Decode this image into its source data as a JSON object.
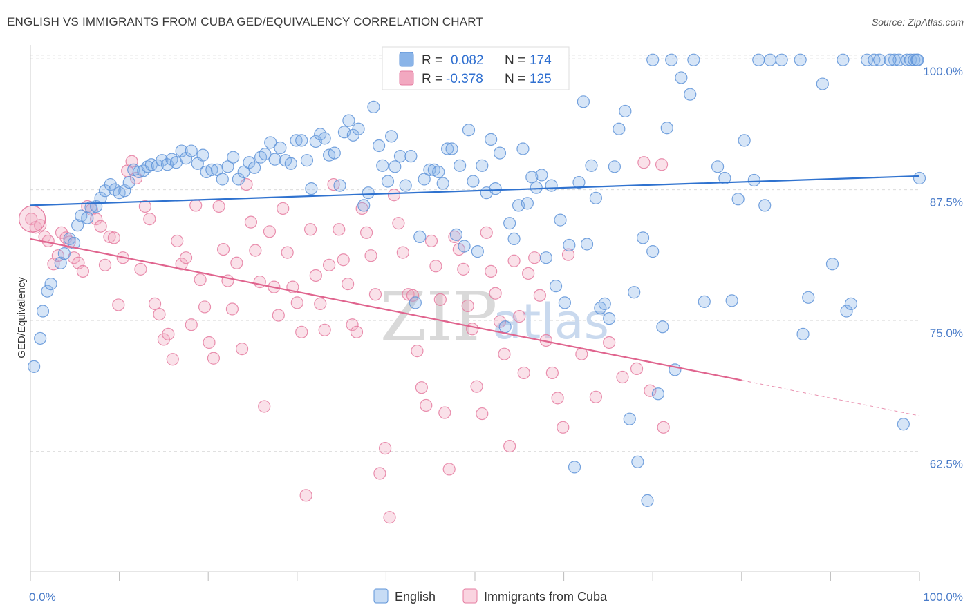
{
  "header": {
    "title": "ENGLISH VS IMMIGRANTS FROM CUBA GED/EQUIVALENCY CORRELATION CHART",
    "source": "Source: ZipAtlas.com"
  },
  "watermark": {
    "zip": "ZIP",
    "atlas": "atlas"
  },
  "legend_box": {
    "rows": [
      {
        "r_label": "R =",
        "r_value": "0.082",
        "n_label": "N =",
        "n_value": "174",
        "color": "#8ab4e8"
      },
      {
        "r_label": "R =",
        "r_value": "-0.378",
        "n_label": "N =",
        "n_value": "125",
        "color": "#f2a8c0"
      }
    ]
  },
  "chart_data": {
    "type": "scatter",
    "title": "ENGLISH VS IMMIGRANTS FROM CUBA GED/EQUIVALENCY CORRELATION CHART",
    "xlabel": "",
    "ylabel": "GED/Equivalency",
    "xlim": [
      0,
      100
    ],
    "ylim": [
      51,
      101
    ],
    "x_tick_labels": [
      "0.0%",
      "100.0%"
    ],
    "y_ticks": [
      62.5,
      75.0,
      87.5,
      100.0
    ],
    "y_tick_labels": [
      "62.5%",
      "75.0%",
      "87.5%",
      "100.0%"
    ],
    "grid": true,
    "legend_position": "bottom-center",
    "series": [
      {
        "name": "English",
        "color": "#8ab4e8",
        "stroke": "#5e93d8",
        "trend": {
          "x": [
            0,
            100
          ],
          "y": [
            86.0,
            88.8
          ],
          "color": "#2f72cf"
        },
        "points": [
          [
            0.4,
            70.6
          ],
          [
            1.1,
            73.3
          ],
          [
            1.4,
            75.9
          ],
          [
            1.9,
            77.8
          ],
          [
            2.3,
            78.5
          ],
          [
            3.4,
            80.5
          ],
          [
            3.8,
            81.4
          ],
          [
            4.4,
            82.8
          ],
          [
            4.9,
            82.4
          ],
          [
            5.3,
            84.1
          ],
          [
            5.7,
            85.0
          ],
          [
            6.4,
            84.8
          ],
          [
            6.8,
            85.8
          ],
          [
            7.4,
            85.9
          ],
          [
            7.9,
            86.7
          ],
          [
            8.4,
            87.4
          ],
          [
            9.0,
            88.0
          ],
          [
            9.5,
            87.5
          ],
          [
            10.0,
            87.2
          ],
          [
            10.6,
            87.4
          ],
          [
            11.1,
            88.2
          ],
          [
            11.6,
            89.4
          ],
          [
            12.2,
            89.2
          ],
          [
            12.7,
            89.3
          ],
          [
            13.2,
            89.7
          ],
          [
            13.6,
            89.9
          ],
          [
            14.3,
            89.8
          ],
          [
            14.8,
            90.3
          ],
          [
            15.4,
            89.9
          ],
          [
            15.9,
            90.4
          ],
          [
            16.4,
            90.1
          ],
          [
            17.0,
            91.2
          ],
          [
            17.5,
            90.5
          ],
          [
            18.1,
            91.2
          ],
          [
            18.8,
            90.0
          ],
          [
            19.4,
            90.8
          ],
          [
            19.8,
            89.2
          ],
          [
            20.4,
            89.4
          ],
          [
            21.0,
            89.4
          ],
          [
            21.6,
            88.5
          ],
          [
            22.2,
            89.7
          ],
          [
            22.8,
            90.6
          ],
          [
            23.4,
            88.5
          ],
          [
            24.0,
            89.2
          ],
          [
            24.6,
            90.1
          ],
          [
            25.2,
            89.6
          ],
          [
            25.9,
            90.6
          ],
          [
            26.4,
            90.9
          ],
          [
            27.0,
            92.0
          ],
          [
            27.5,
            90.4
          ],
          [
            28.1,
            91.5
          ],
          [
            28.7,
            90.3
          ],
          [
            29.3,
            90.0
          ],
          [
            29.9,
            92.2
          ],
          [
            30.5,
            92.2
          ],
          [
            31.1,
            90.3
          ],
          [
            31.6,
            87.6
          ],
          [
            32.1,
            92.1
          ],
          [
            32.6,
            92.8
          ],
          [
            33.1,
            92.4
          ],
          [
            33.6,
            90.8
          ],
          [
            34.2,
            91.0
          ],
          [
            34.8,
            87.9
          ],
          [
            35.3,
            93.0
          ],
          [
            35.8,
            94.1
          ],
          [
            36.3,
            92.7
          ],
          [
            36.9,
            93.3
          ],
          [
            37.5,
            86.0
          ],
          [
            38.0,
            87.2
          ],
          [
            38.6,
            95.4
          ],
          [
            39.2,
            91.7
          ],
          [
            39.6,
            89.8
          ],
          [
            40.2,
            88.3
          ],
          [
            40.6,
            92.6
          ],
          [
            41.0,
            89.7
          ],
          [
            41.6,
            90.7
          ],
          [
            42.2,
            87.9
          ],
          [
            42.8,
            90.7
          ],
          [
            43.3,
            76.7
          ],
          [
            43.8,
            83.0
          ],
          [
            44.3,
            88.5
          ],
          [
            44.9,
            89.4
          ],
          [
            45.4,
            89.4
          ],
          [
            45.9,
            89.2
          ],
          [
            46.4,
            88.1
          ],
          [
            46.9,
            91.4
          ],
          [
            47.4,
            91.4
          ],
          [
            47.9,
            83.2
          ],
          [
            48.3,
            89.8
          ],
          [
            48.8,
            82.1
          ],
          [
            49.3,
            93.2
          ],
          [
            49.8,
            88.3
          ],
          [
            50.3,
            81.6
          ],
          [
            50.8,
            89.8
          ],
          [
            51.3,
            87.2
          ],
          [
            51.8,
            92.3
          ],
          [
            52.3,
            87.6
          ],
          [
            52.8,
            91.0
          ],
          [
            53.4,
            74.4
          ],
          [
            53.9,
            84.3
          ],
          [
            54.4,
            82.8
          ],
          [
            54.9,
            86.0
          ],
          [
            55.4,
            91.4
          ],
          [
            55.9,
            86.2
          ],
          [
            56.4,
            88.7
          ],
          [
            56.9,
            87.7
          ],
          [
            57.5,
            88.9
          ],
          [
            58.0,
            81.0
          ],
          [
            58.6,
            87.9
          ],
          [
            59.1,
            78.3
          ],
          [
            59.6,
            84.6
          ],
          [
            60.1,
            76.7
          ],
          [
            60.6,
            82.2
          ],
          [
            61.2,
            61.0
          ],
          [
            61.7,
            88.2
          ],
          [
            62.2,
            95.9
          ],
          [
            62.6,
            82.3
          ],
          [
            63.1,
            89.8
          ],
          [
            63.6,
            86.7
          ],
          [
            64.1,
            76.2
          ],
          [
            64.6,
            76.6
          ],
          [
            65.1,
            75.2
          ],
          [
            65.7,
            89.7
          ],
          [
            66.2,
            93.3
          ],
          [
            66.9,
            95.0
          ],
          [
            67.4,
            65.6
          ],
          [
            67.9,
            77.7
          ],
          [
            68.3,
            61.5
          ],
          [
            68.9,
            82.9
          ],
          [
            69.4,
            57.8
          ],
          [
            70.0,
            81.6
          ],
          [
            70.6,
            68.0
          ],
          [
            71.1,
            74.4
          ],
          [
            71.6,
            93.4
          ],
          [
            72.5,
            70.3
          ],
          [
            73.2,
            98.2
          ],
          [
            74.2,
            96.6
          ],
          [
            75.8,
            76.8
          ],
          [
            77.3,
            89.7
          ],
          [
            78.1,
            88.6
          ],
          [
            78.9,
            76.9
          ],
          [
            79.6,
            86.6
          ],
          [
            80.3,
            92.2
          ],
          [
            81.4,
            88.4
          ],
          [
            82.6,
            86.0
          ],
          [
            83.2,
            99.9
          ],
          [
            84.5,
            99.9
          ],
          [
            86.6,
            99.9
          ],
          [
            86.9,
            73.7
          ],
          [
            87.5,
            77.2
          ],
          [
            89.1,
            97.6
          ],
          [
            90.2,
            80.4
          ],
          [
            91.4,
            99.9
          ],
          [
            91.8,
            75.9
          ],
          [
            92.3,
            76.6
          ],
          [
            94.1,
            99.9
          ],
          [
            94.9,
            99.9
          ],
          [
            95.5,
            99.9
          ],
          [
            97.2,
            99.9
          ],
          [
            97.7,
            99.9
          ],
          [
            98.2,
            65.1
          ],
          [
            98.6,
            99.9
          ],
          [
            99.0,
            99.9
          ],
          [
            99.4,
            99.9
          ],
          [
            99.7,
            99.9
          ],
          [
            99.8,
            99.9
          ],
          [
            70.0,
            99.9
          ],
          [
            72.1,
            99.9
          ],
          [
            74.6,
            99.9
          ],
          [
            96.7,
            99.9
          ],
          [
            81.9,
            99.9
          ],
          [
            100.0,
            88.6
          ]
        ]
      },
      {
        "name": "Immigrants from Cuba",
        "color": "#f2a8c0",
        "stroke": "#e57ba0",
        "trend": {
          "x": [
            0,
            80
          ],
          "y": [
            82.8,
            69.3
          ],
          "color": "#e0648e"
        },
        "trend_extension": {
          "x": [
            80,
            100
          ],
          "y": [
            69.3,
            65.9
          ]
        },
        "points": [
          [
            0.1,
            84.7
          ],
          [
            0.6,
            83.9
          ],
          [
            1.1,
            84.1
          ],
          [
            1.6,
            83.0
          ],
          [
            2.0,
            82.6
          ],
          [
            2.6,
            80.4
          ],
          [
            3.1,
            81.2
          ],
          [
            3.5,
            83.4
          ],
          [
            4.0,
            82.9
          ],
          [
            4.4,
            82.5
          ],
          [
            4.9,
            81.0
          ],
          [
            5.4,
            80.5
          ],
          [
            5.9,
            79.7
          ],
          [
            6.4,
            85.9
          ],
          [
            6.9,
            85.6
          ],
          [
            7.4,
            84.7
          ],
          [
            7.9,
            84.0
          ],
          [
            8.4,
            80.3
          ],
          [
            8.9,
            83.0
          ],
          [
            9.4,
            82.9
          ],
          [
            9.9,
            76.5
          ],
          [
            10.4,
            81.0
          ],
          [
            10.9,
            89.3
          ],
          [
            11.4,
            90.2
          ],
          [
            11.9,
            88.6
          ],
          [
            12.4,
            79.9
          ],
          [
            12.9,
            85.9
          ],
          [
            13.4,
            84.7
          ],
          [
            14.0,
            76.6
          ],
          [
            14.5,
            75.6
          ],
          [
            15.0,
            73.2
          ],
          [
            15.5,
            73.7
          ],
          [
            16.0,
            71.3
          ],
          [
            16.5,
            82.6
          ],
          [
            17.0,
            80.4
          ],
          [
            17.5,
            81.0
          ],
          [
            18.1,
            74.6
          ],
          [
            18.6,
            86.0
          ],
          [
            19.1,
            78.9
          ],
          [
            19.6,
            76.3
          ],
          [
            20.1,
            72.9
          ],
          [
            20.6,
            71.4
          ],
          [
            21.2,
            85.9
          ],
          [
            21.7,
            81.8
          ],
          [
            22.2,
            78.8
          ],
          [
            22.7,
            76.1
          ],
          [
            23.2,
            80.5
          ],
          [
            23.8,
            72.3
          ],
          [
            24.3,
            88.0
          ],
          [
            24.8,
            84.4
          ],
          [
            25.3,
            81.7
          ],
          [
            25.8,
            78.7
          ],
          [
            26.3,
            66.8
          ],
          [
            26.9,
            83.5
          ],
          [
            27.4,
            78.2
          ],
          [
            27.9,
            75.5
          ],
          [
            28.4,
            85.7
          ],
          [
            28.9,
            81.5
          ],
          [
            29.5,
            78.2
          ],
          [
            30.0,
            76.7
          ],
          [
            30.5,
            73.9
          ],
          [
            31.0,
            58.3
          ],
          [
            31.5,
            83.7
          ],
          [
            32.1,
            79.3
          ],
          [
            32.6,
            76.6
          ],
          [
            33.1,
            74.1
          ],
          [
            33.6,
            80.3
          ],
          [
            34.1,
            88.0
          ],
          [
            34.7,
            83.7
          ],
          [
            35.2,
            80.8
          ],
          [
            35.7,
            78.5
          ],
          [
            36.2,
            74.6
          ],
          [
            36.7,
            73.9
          ],
          [
            37.3,
            85.7
          ],
          [
            37.8,
            83.4
          ],
          [
            38.3,
            81.2
          ],
          [
            38.8,
            77.5
          ],
          [
            39.3,
            60.4
          ],
          [
            39.9,
            62.8
          ],
          [
            40.4,
            56.2
          ],
          [
            40.9,
            87.0
          ],
          [
            41.4,
            84.3
          ],
          [
            41.9,
            81.5
          ],
          [
            42.5,
            77.5
          ],
          [
            43.0,
            77.4
          ],
          [
            43.5,
            72.1
          ],
          [
            44.0,
            68.6
          ],
          [
            44.5,
            66.9
          ],
          [
            45.1,
            82.6
          ],
          [
            45.6,
            80.2
          ],
          [
            46.1,
            77.0
          ],
          [
            46.6,
            66.2
          ],
          [
            47.1,
            60.8
          ],
          [
            47.7,
            83.0
          ],
          [
            48.2,
            81.8
          ],
          [
            48.7,
            79.9
          ],
          [
            49.2,
            76.4
          ],
          [
            49.7,
            74.2
          ],
          [
            50.2,
            68.7
          ],
          [
            50.8,
            66.1
          ],
          [
            51.3,
            83.4
          ],
          [
            51.8,
            79.7
          ],
          [
            52.3,
            77.6
          ],
          [
            52.8,
            74.9
          ],
          [
            53.3,
            71.8
          ],
          [
            53.9,
            63.0
          ],
          [
            54.4,
            80.7
          ],
          [
            55.0,
            75.4
          ],
          [
            55.5,
            70.0
          ],
          [
            56.0,
            79.5
          ],
          [
            56.7,
            81.0
          ],
          [
            57.3,
            77.4
          ],
          [
            58.0,
            73.1
          ],
          [
            58.7,
            70.0
          ],
          [
            59.3,
            67.6
          ],
          [
            59.9,
            64.8
          ],
          [
            60.5,
            81.3
          ],
          [
            62.0,
            71.8
          ],
          [
            63.6,
            67.7
          ],
          [
            65.1,
            72.9
          ],
          [
            66.6,
            69.6
          ],
          [
            68.2,
            70.4
          ],
          [
            69.7,
            68.3
          ],
          [
            71.2,
            64.8
          ],
          [
            69.0,
            90.1
          ],
          [
            71.0,
            89.9
          ]
        ]
      }
    ]
  }
}
